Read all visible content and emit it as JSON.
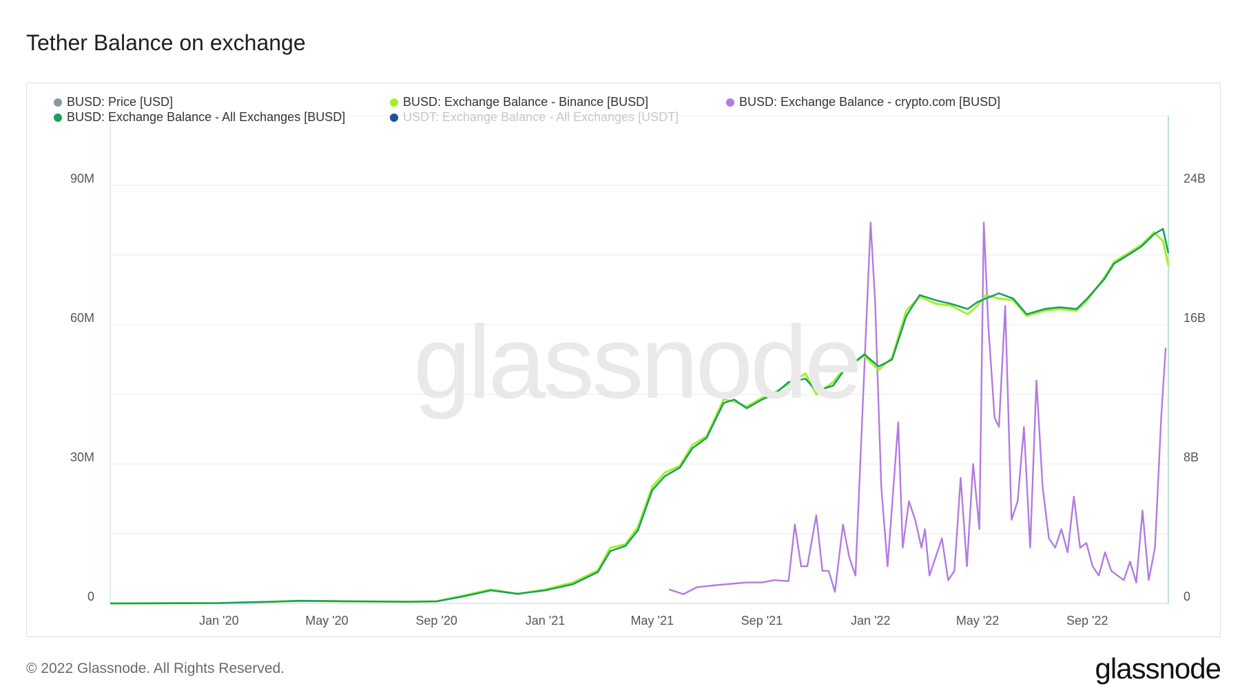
{
  "page": {
    "title": "Tether Balance on exchange",
    "copyright": "© 2022 Glassnode. All Rights Reserved.",
    "logo": "glassnode",
    "watermark": "glassnode"
  },
  "legend": [
    {
      "label": "BUSD: Price [USD]",
      "color": "#8a9aa3",
      "active": true
    },
    {
      "label": "BUSD: Exchange Balance - Binance [BUSD]",
      "color": "#a3f02a",
      "active": true
    },
    {
      "label": "BUSD: Exchange Balance - crypto.com [BUSD]",
      "color": "#b27be0",
      "active": true
    },
    {
      "label": "BUSD: Exchange Balance - All Exchanges [BUSD]",
      "color": "#18a15f",
      "active": true
    },
    {
      "label": "USDT: Exchange Balance - All Exchanges [USDT]",
      "color": "#1a4f9c",
      "active": false
    }
  ],
  "chart_data": {
    "type": "line",
    "title": "Tether Balance on exchange",
    "x_range": [
      "2019-09-01",
      "2022-12-01"
    ],
    "x_ticks": [
      "Jan '20",
      "May '20",
      "Sep '20",
      "Jan '21",
      "May '21",
      "Sep '21",
      "Jan '22",
      "May '22",
      "Sep '22"
    ],
    "x_tick_dates": [
      "2020-01-01",
      "2020-05-01",
      "2020-09-01",
      "2021-01-01",
      "2021-05-01",
      "2021-09-01",
      "2022-01-01",
      "2022-05-01",
      "2022-09-01"
    ],
    "y_left": {
      "ticks": [
        "0",
        "30M",
        "60M",
        "90M"
      ],
      "tick_values": [
        0,
        30000000,
        60000000,
        90000000
      ],
      "range": [
        0,
        105000000
      ]
    },
    "y_right": {
      "ticks": [
        "0",
        "8B",
        "16B",
        "24B"
      ],
      "tick_values": [
        0,
        8000000000,
        16000000000,
        24000000000
      ],
      "range": [
        0,
        28000000000
      ]
    },
    "grid": true,
    "legend_position": "top-left",
    "series": [
      {
        "name": "BUSD: Exchange Balance - All Exchanges [BUSD]",
        "axis": "right",
        "color": "#18a15f",
        "points": [
          [
            "2019-09-01",
            0
          ],
          [
            "2020-01-01",
            0.02
          ],
          [
            "2020-03-01",
            0.1
          ],
          [
            "2020-04-01",
            0.15
          ],
          [
            "2020-06-01",
            0.12
          ],
          [
            "2020-08-01",
            0.1
          ],
          [
            "2020-09-01",
            0.12
          ],
          [
            "2020-10-01",
            0.4
          ],
          [
            "2020-11-01",
            0.75
          ],
          [
            "2020-12-01",
            0.55
          ],
          [
            "2021-01-01",
            0.75
          ],
          [
            "2021-02-01",
            1.1
          ],
          [
            "2021-03-01",
            1.8
          ],
          [
            "2021-03-15",
            3.0
          ],
          [
            "2021-04-01",
            3.3
          ],
          [
            "2021-04-15",
            4.2
          ],
          [
            "2021-05-01",
            6.5
          ],
          [
            "2021-05-15",
            7.3
          ],
          [
            "2021-06-01",
            7.8
          ],
          [
            "2021-06-15",
            8.9
          ],
          [
            "2021-07-01",
            9.5
          ],
          [
            "2021-07-20",
            11.5
          ],
          [
            "2021-08-01",
            11.7
          ],
          [
            "2021-08-15",
            11.2
          ],
          [
            "2021-09-01",
            11.7
          ],
          [
            "2021-09-15",
            12.0
          ],
          [
            "2021-10-01",
            12.7
          ],
          [
            "2021-10-20",
            12.9
          ],
          [
            "2021-11-01",
            12.2
          ],
          [
            "2021-11-20",
            12.5
          ],
          [
            "2021-12-01",
            13.3
          ],
          [
            "2021-12-25",
            14.3
          ],
          [
            "2022-01-10",
            13.6
          ],
          [
            "2022-01-25",
            14.0
          ],
          [
            "2022-02-10",
            16.5
          ],
          [
            "2022-02-25",
            17.7
          ],
          [
            "2022-03-15",
            17.4
          ],
          [
            "2022-04-01",
            17.2
          ],
          [
            "2022-04-20",
            16.9
          ],
          [
            "2022-05-01",
            17.3
          ],
          [
            "2022-05-10",
            17.5
          ],
          [
            "2022-05-25",
            17.8
          ],
          [
            "2022-06-10",
            17.5
          ],
          [
            "2022-06-25",
            16.6
          ],
          [
            "2022-07-15",
            16.9
          ],
          [
            "2022-08-01",
            17.0
          ],
          [
            "2022-08-20",
            16.9
          ],
          [
            "2022-09-01",
            17.5
          ],
          [
            "2022-09-20",
            18.6
          ],
          [
            "2022-10-01",
            19.5
          ],
          [
            "2022-10-20",
            20.1
          ],
          [
            "2022-11-01",
            20.5
          ],
          [
            "2022-11-15",
            21.2
          ],
          [
            "2022-11-25",
            21.5
          ],
          [
            "2022-12-01",
            20.1
          ]
        ]
      },
      {
        "name": "BUSD: Exchange Balance - Binance [BUSD]",
        "axis": "right",
        "color": "#a3f02a",
        "points": [
          [
            "2019-09-01",
            0
          ],
          [
            "2020-01-01",
            0.02
          ],
          [
            "2020-03-01",
            0.1
          ],
          [
            "2020-04-01",
            0.15
          ],
          [
            "2020-06-01",
            0.12
          ],
          [
            "2020-08-01",
            0.1
          ],
          [
            "2020-09-01",
            0.12
          ],
          [
            "2020-10-01",
            0.45
          ],
          [
            "2020-11-01",
            0.8
          ],
          [
            "2020-12-01",
            0.55
          ],
          [
            "2021-01-01",
            0.8
          ],
          [
            "2021-02-01",
            1.2
          ],
          [
            "2021-03-01",
            1.9
          ],
          [
            "2021-03-15",
            3.2
          ],
          [
            "2021-04-01",
            3.4
          ],
          [
            "2021-04-15",
            4.4
          ],
          [
            "2021-05-01",
            6.7
          ],
          [
            "2021-05-15",
            7.5
          ],
          [
            "2021-06-01",
            7.9
          ],
          [
            "2021-06-15",
            9.1
          ],
          [
            "2021-07-01",
            9.6
          ],
          [
            "2021-07-20",
            11.7
          ],
          [
            "2021-08-01",
            11.6
          ],
          [
            "2021-08-15",
            11.3
          ],
          [
            "2021-09-01",
            11.8
          ],
          [
            "2021-09-15",
            12.1
          ],
          [
            "2021-10-01",
            12.6
          ],
          [
            "2021-10-20",
            13.2
          ],
          [
            "2021-11-01",
            12.0
          ],
          [
            "2021-11-20",
            12.7
          ],
          [
            "2021-12-01",
            13.4
          ],
          [
            "2021-12-25",
            14.2
          ],
          [
            "2022-01-10",
            13.4
          ],
          [
            "2022-01-25",
            14.1
          ],
          [
            "2022-02-10",
            16.8
          ],
          [
            "2022-02-25",
            17.6
          ],
          [
            "2022-03-15",
            17.2
          ],
          [
            "2022-04-01",
            17.1
          ],
          [
            "2022-04-20",
            16.6
          ],
          [
            "2022-05-01",
            17.1
          ],
          [
            "2022-05-10",
            17.7
          ],
          [
            "2022-05-25",
            17.5
          ],
          [
            "2022-06-10",
            17.4
          ],
          [
            "2022-06-25",
            16.5
          ],
          [
            "2022-07-15",
            16.8
          ],
          [
            "2022-08-01",
            16.9
          ],
          [
            "2022-08-20",
            16.8
          ],
          [
            "2022-09-01",
            17.4
          ],
          [
            "2022-09-20",
            18.7
          ],
          [
            "2022-10-01",
            19.6
          ],
          [
            "2022-10-20",
            20.2
          ],
          [
            "2022-11-01",
            20.6
          ],
          [
            "2022-11-15",
            21.3
          ],
          [
            "2022-11-25",
            20.8
          ],
          [
            "2022-12-01",
            19.4
          ]
        ]
      },
      {
        "name": "BUSD: Exchange Balance - crypto.com [BUSD]",
        "axis": "left",
        "color": "#b27be0",
        "points": [
          [
            "2021-05-20",
            3.0
          ],
          [
            "2021-06-05",
            2.0
          ],
          [
            "2021-06-20",
            3.5
          ],
          [
            "2021-07-15",
            4.0
          ],
          [
            "2021-08-15",
            4.5
          ],
          [
            "2021-09-01",
            4.5
          ],
          [
            "2021-09-15",
            5.0
          ],
          [
            "2021-10-01",
            4.8
          ],
          [
            "2021-10-08",
            17.0
          ],
          [
            "2021-10-15",
            8.0
          ],
          [
            "2021-10-22",
            8.0
          ],
          [
            "2021-11-01",
            19.0
          ],
          [
            "2021-11-08",
            7.0
          ],
          [
            "2021-11-15",
            7.0
          ],
          [
            "2021-11-22",
            2.5
          ],
          [
            "2021-12-01",
            17.0
          ],
          [
            "2021-12-08",
            10.0
          ],
          [
            "2021-12-15",
            6.0
          ],
          [
            "2022-01-01",
            82.0
          ],
          [
            "2022-01-06",
            65.0
          ],
          [
            "2022-01-13",
            25.0
          ],
          [
            "2022-01-20",
            8.0
          ],
          [
            "2022-02-01",
            39.0
          ],
          [
            "2022-02-06",
            12.0
          ],
          [
            "2022-02-13",
            22.0
          ],
          [
            "2022-02-20",
            18.0
          ],
          [
            "2022-02-27",
            12.0
          ],
          [
            "2022-03-03",
            16.0
          ],
          [
            "2022-03-08",
            6.0
          ],
          [
            "2022-03-15",
            10.0
          ],
          [
            "2022-03-22",
            14.0
          ],
          [
            "2022-03-29",
            5.0
          ],
          [
            "2022-04-05",
            7.0
          ],
          [
            "2022-04-12",
            27.0
          ],
          [
            "2022-04-19",
            8.0
          ],
          [
            "2022-04-26",
            30.0
          ],
          [
            "2022-05-03",
            16.0
          ],
          [
            "2022-05-08",
            82.0
          ],
          [
            "2022-05-13",
            60.0
          ],
          [
            "2022-05-20",
            40.0
          ],
          [
            "2022-05-25",
            38.0
          ],
          [
            "2022-06-01",
            64.0
          ],
          [
            "2022-06-08",
            18.0
          ],
          [
            "2022-06-15",
            22.0
          ],
          [
            "2022-06-22",
            38.0
          ],
          [
            "2022-06-29",
            12.0
          ],
          [
            "2022-07-06",
            48.0
          ],
          [
            "2022-07-13",
            25.0
          ],
          [
            "2022-07-20",
            14.0
          ],
          [
            "2022-07-27",
            12.0
          ],
          [
            "2022-08-03",
            16.0
          ],
          [
            "2022-08-10",
            11.0
          ],
          [
            "2022-08-17",
            23.0
          ],
          [
            "2022-08-24",
            12.0
          ],
          [
            "2022-08-31",
            13.0
          ],
          [
            "2022-09-07",
            8.0
          ],
          [
            "2022-09-14",
            6.0
          ],
          [
            "2022-09-21",
            11.0
          ],
          [
            "2022-09-28",
            7.0
          ],
          [
            "2022-10-05",
            6.0
          ],
          [
            "2022-10-12",
            5.0
          ],
          [
            "2022-10-19",
            9.0
          ],
          [
            "2022-10-26",
            4.5
          ],
          [
            "2022-11-02",
            20.0
          ],
          [
            "2022-11-09",
            5.0
          ],
          [
            "2022-11-16",
            12.0
          ],
          [
            "2022-11-23",
            40.0
          ],
          [
            "2022-11-28",
            55.0
          ]
        ]
      }
    ]
  }
}
